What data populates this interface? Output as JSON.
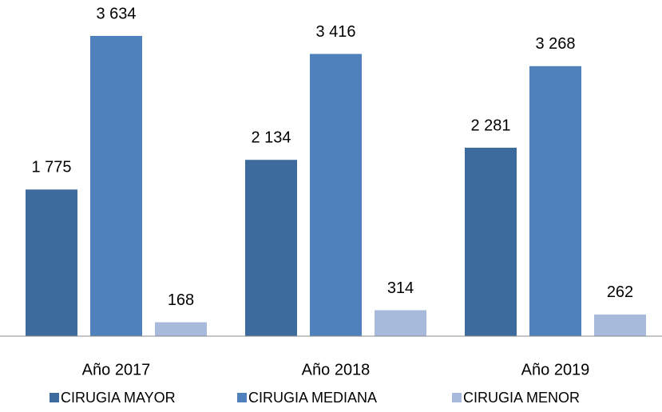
{
  "chart_data": {
    "type": "bar",
    "categories": [
      "Año 2017",
      "Año 2018",
      "Año 2019"
    ],
    "series": [
      {
        "name": "CIRUGIA MAYOR",
        "color": "#3e6b9d",
        "values": [
          1775,
          2134,
          2281
        ],
        "value_labels": [
          "1 775",
          "2 134",
          "2 281"
        ]
      },
      {
        "name": "CIRUGIA MEDIANA",
        "color": "#4f81bd",
        "values": [
          3634,
          3416,
          3268
        ],
        "value_labels": [
          "3 634",
          "3 416",
          "3 268"
        ]
      },
      {
        "name": "CIRUGIA MENOR",
        "color": "#a8badc",
        "values": [
          168,
          314,
          262
        ],
        "value_labels": [
          "168",
          "314",
          "262"
        ]
      }
    ],
    "legend": "bottom"
  }
}
